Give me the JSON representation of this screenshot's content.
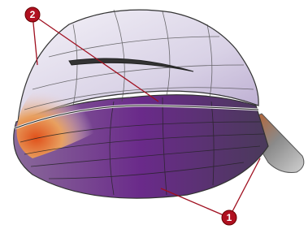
{
  "callouts": [
    {
      "label": "2"
    },
    {
      "label": "1"
    }
  ]
}
